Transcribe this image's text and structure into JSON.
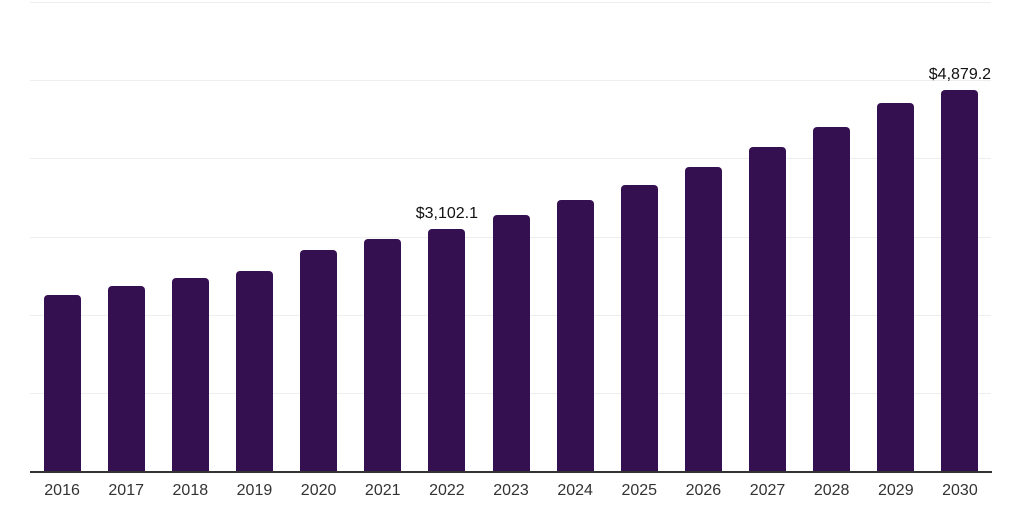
{
  "chart_data": {
    "type": "bar",
    "categories": [
      "2016",
      "2017",
      "2018",
      "2019",
      "2020",
      "2021",
      "2022",
      "2023",
      "2024",
      "2025",
      "2026",
      "2027",
      "2028",
      "2029",
      "2030"
    ],
    "values": [
      2254,
      2373,
      2466,
      2565,
      2833,
      2970,
      3102.1,
      3277,
      3472,
      3661,
      3885,
      4141,
      4406,
      4709,
      4879.2
    ],
    "data_labels": [
      {
        "category": "2022",
        "text": "$3,102.1"
      },
      {
        "category": "2030",
        "text": "$4,879.2"
      }
    ],
    "title": "",
    "xlabel": "",
    "ylabel": "",
    "ylim": [
      0,
      6000
    ],
    "gridline_step": 1000,
    "grid": true,
    "legend_position": "none",
    "y_tick_labels_shown": false,
    "colors": {
      "bar": "#341050",
      "gridline": "#eeeeee",
      "axis_line": "#333333",
      "x_label": "#333333",
      "data_label": "#111111",
      "background": "#ffffff"
    }
  }
}
